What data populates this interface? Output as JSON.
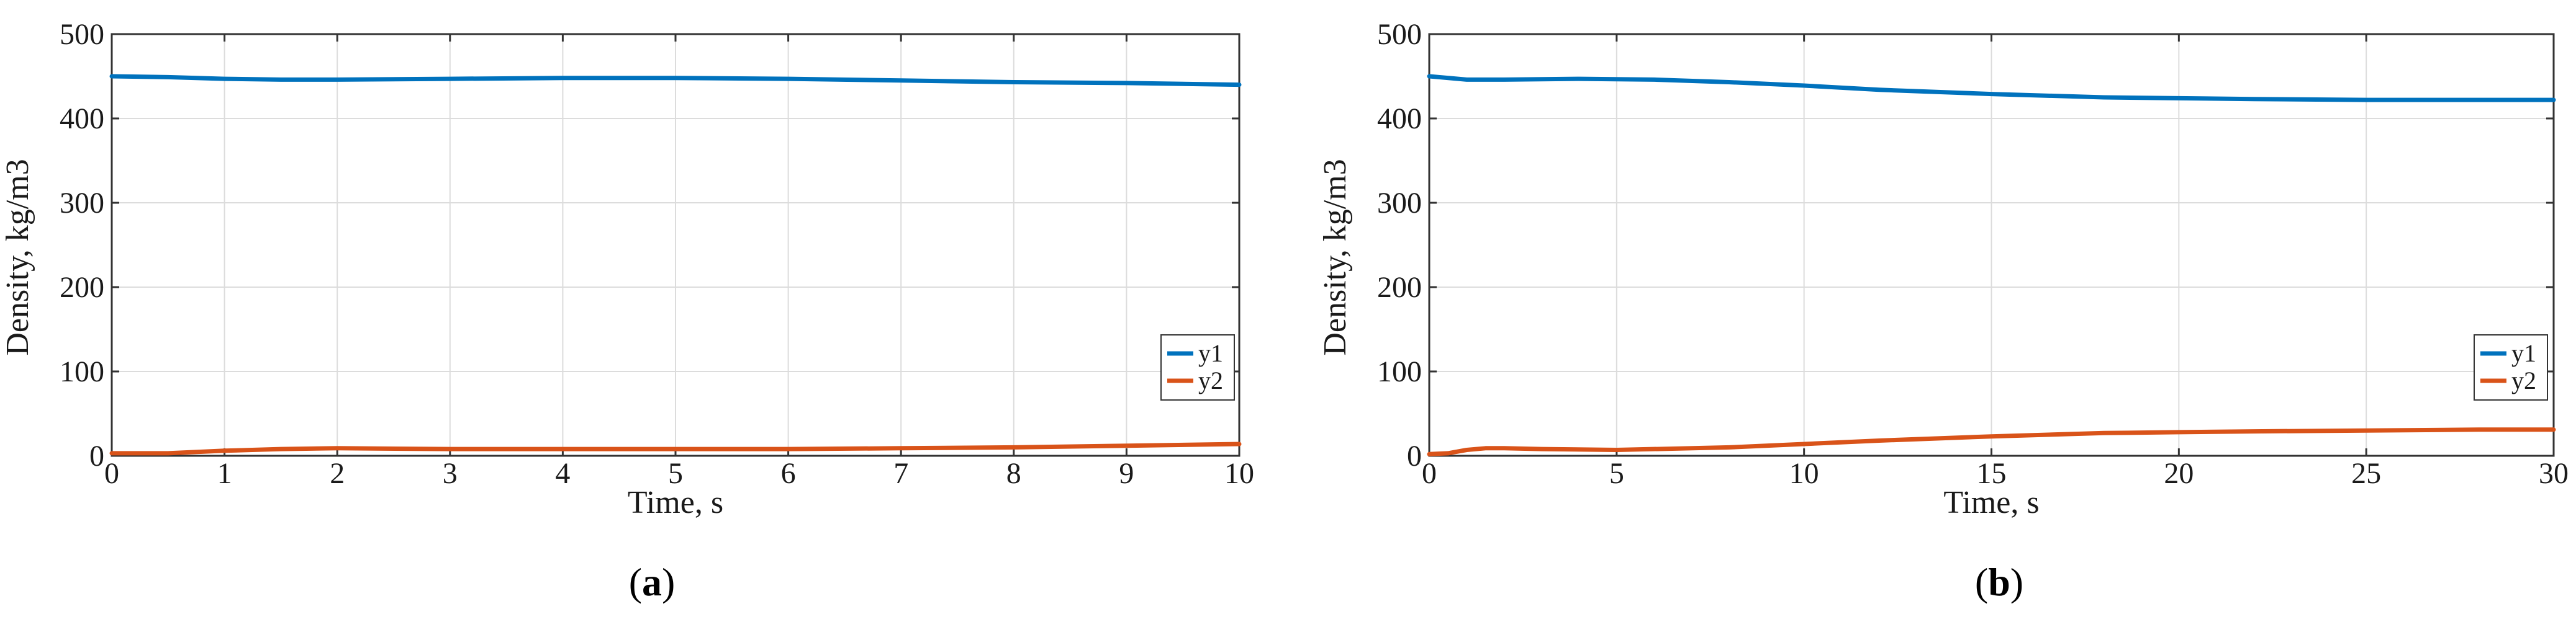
{
  "chart_data": [
    {
      "type": "line",
      "panel_label_open": "(",
      "panel_label_letter": "a",
      "panel_label_close": ")",
      "xlabel": "Time, s",
      "ylabel": "Density, kg/m3",
      "xlim": [
        0,
        10
      ],
      "ylim": [
        0,
        500
      ],
      "xticks": [
        0,
        1,
        2,
        3,
        4,
        5,
        6,
        7,
        8,
        9,
        10
      ],
      "yticks": [
        0,
        100,
        200,
        300,
        400,
        500
      ],
      "grid": true,
      "legend_position": "bottom-right",
      "series": [
        {
          "name": "y1",
          "color": "#0072BD",
          "x": [
            0,
            0.5,
            1,
            1.5,
            2,
            3,
            4,
            5,
            6,
            7,
            8,
            9,
            10
          ],
          "y": [
            450,
            449,
            447,
            446,
            446,
            447,
            448,
            448,
            447,
            445,
            443,
            442,
            440
          ]
        },
        {
          "name": "y2",
          "color": "#D95319",
          "x": [
            0,
            0.5,
            1,
            1.5,
            2,
            3,
            4,
            5,
            6,
            7,
            8,
            9,
            10
          ],
          "y": [
            3,
            3,
            6,
            8,
            9,
            8,
            8,
            8,
            8,
            9,
            10,
            12,
            14
          ]
        }
      ]
    },
    {
      "type": "line",
      "panel_label_open": "(",
      "panel_label_letter": "b",
      "panel_label_close": ")",
      "xlabel": "Time, s",
      "ylabel": "Density, kg/m3",
      "xlim": [
        0,
        30
      ],
      "ylim": [
        0,
        500
      ],
      "xticks": [
        0,
        5,
        10,
        15,
        20,
        25,
        30
      ],
      "yticks": [
        0,
        100,
        200,
        300,
        400,
        500
      ],
      "grid": true,
      "legend_position": "bottom-right",
      "series": [
        {
          "name": "y1",
          "color": "#0072BD",
          "x": [
            0,
            1,
            2,
            4,
            6,
            8,
            10,
            12,
            15,
            18,
            20,
            22,
            25,
            28,
            30
          ],
          "y": [
            450,
            446,
            446,
            447,
            446,
            443,
            439,
            434,
            429,
            425,
            424,
            423,
            422,
            422,
            422
          ]
        },
        {
          "name": "y2",
          "color": "#D95319",
          "x": [
            0,
            0.5,
            1,
            1.5,
            2,
            3,
            5,
            8,
            10,
            12,
            15,
            18,
            20,
            22,
            25,
            28,
            30
          ],
          "y": [
            2,
            3,
            7,
            9,
            9,
            8,
            7,
            10,
            14,
            18,
            23,
            27,
            28,
            29,
            30,
            31,
            31
          ]
        }
      ]
    }
  ]
}
